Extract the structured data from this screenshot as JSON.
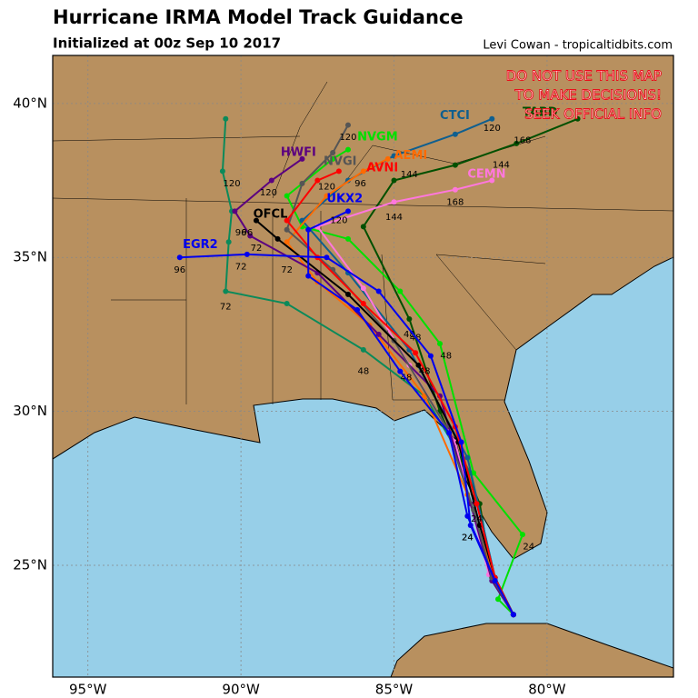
{
  "header": {
    "title": "Hurricane IRMA Model Track Guidance",
    "subtitle": "Initialized at 00z Sep 10 2017",
    "credit": "Levi Cowan - tropicaltidbits.com"
  },
  "warning": [
    "DO NOT USE THIS MAP",
    "TO MAKE DECISIONS!",
    "SEEK OFFICIAL INFO"
  ],
  "map": {
    "xlim": [
      -96.15,
      -75.87
    ],
    "ylim": [
      21.37,
      41.56
    ],
    "xticks": [
      {
        "value": -95,
        "label": "95°W"
      },
      {
        "value": -90,
        "label": "90°W"
      },
      {
        "value": -85,
        "label": "85°W"
      },
      {
        "value": -80,
        "label": "80°W"
      }
    ],
    "yticks": [
      {
        "value": 25,
        "label": "25°N"
      },
      {
        "value": 30,
        "label": "30°N"
      },
      {
        "value": 35,
        "label": "35°N"
      },
      {
        "value": 40,
        "label": "40°N"
      }
    ],
    "tracks": [
      {
        "color": "#0b8a5a",
        "lon": [
          -81.1,
          -81.7,
          -82.5,
          -84,
          -86,
          -88.5,
          -90.5,
          -90.4,
          -90.3,
          -90.6,
          -90.5
        ],
        "lat": [
          23.4,
          24.6,
          28,
          30.5,
          32,
          33.5,
          33.9,
          35.5,
          36.5,
          37.8,
          39.5
        ],
        "hours": [
          {
            "h": 48,
            "lon": -86,
            "lat": 31.3
          },
          {
            "h": 72,
            "lon": -90.5,
            "lat": 33.4
          },
          {
            "h": 120,
            "lon": -90.3,
            "lat": 37.4
          }
        ]
      },
      {
        "color": "#00e000",
        "name": "NVGM",
        "label_at": [
          -86.2,
          38.9
        ],
        "lon": [
          -81.1,
          -81.6,
          -80.8,
          -82.4,
          -83.5,
          -84.8,
          -86.5,
          -88,
          -88.5,
          -87,
          -86.5
        ],
        "lat": [
          23.4,
          23.9,
          26,
          28,
          32.2,
          33.9,
          35.6,
          36,
          37,
          38.2,
          38.5
        ],
        "hours": [
          {
            "h": 24,
            "lon": -80.6,
            "lat": 25.6
          },
          {
            "h": 48,
            "lon": -83.3,
            "lat": 31.8
          }
        ]
      },
      {
        "color": "#005000",
        "name": "TABD",
        "label_at": [
          -80.8,
          39.7
        ],
        "lon": [
          -81.1,
          -81.8,
          -82.2,
          -83.5,
          -84.5,
          -86,
          -85,
          -83,
          -81,
          -79
        ],
        "lat": [
          23.4,
          24.6,
          27,
          30,
          33,
          36,
          37.5,
          38,
          38.7,
          39.5
        ],
        "hours": [
          {
            "h": 48,
            "lon": -84.3,
            "lat": 32.4
          },
          {
            "h": 144,
            "lon": -81.5,
            "lat": 38
          },
          {
            "h": 168,
            "lon": -80.8,
            "lat": 38.8
          }
        ]
      },
      {
        "color": "#0f5f8f",
        "name": "CTCI",
        "label_at": [
          -83.5,
          39.6
        ],
        "lon": [
          -81.1,
          -81.7,
          -82.6,
          -84.5,
          -86.5,
          -88,
          -86.5,
          -85,
          -83,
          -81.8
        ],
        "lat": [
          23.4,
          24.6,
          28.5,
          32,
          34.5,
          36.2,
          37.5,
          38.3,
          39,
          39.5
        ],
        "hours": [
          {
            "h": 120,
            "lon": -81.8,
            "lat": 39.2
          },
          {
            "h": 144,
            "lon": -84.5,
            "lat": 37.7
          }
        ]
      },
      {
        "color": "#ff77dd",
        "name": "CEMN",
        "label_at": [
          -82.6,
          37.7
        ],
        "lon": [
          -81.1,
          -81.9,
          -82.5,
          -83,
          -84.5,
          -86,
          -87.5,
          -85,
          -83,
          -81.8
        ],
        "lat": [
          23.4,
          24.7,
          27,
          29,
          31.5,
          34,
          36,
          36.8,
          37.2,
          37.5
        ],
        "hours": [
          {
            "h": 144,
            "lon": -85,
            "lat": 36.3
          },
          {
            "h": 168,
            "lon": -83,
            "lat": 36.8
          }
        ]
      },
      {
        "color": "#ff6a00",
        "name": "AEMI",
        "label_at": [
          -85,
          38.3
        ],
        "lon": [
          -81.1,
          -81.8,
          -82.6,
          -84,
          -85.8,
          -87.5,
          -88.5,
          -87.2,
          -86,
          -85.2
        ],
        "lat": [
          23.4,
          24.8,
          27.3,
          30.5,
          32.8,
          34.2,
          35.5,
          37,
          37.8,
          38.2
        ],
        "hours": [
          {
            "h": 72,
            "lon": -88.5,
            "lat": 34.6
          }
        ]
      },
      {
        "color": "#5b0080",
        "name": "HWFI",
        "label_at": [
          -88.7,
          38.4
        ],
        "lon": [
          -81.1,
          -81.8,
          -82.5,
          -83.5,
          -85.5,
          -87.5,
          -89.7,
          -90.2,
          -89,
          -88
        ],
        "lat": [
          23.4,
          24.5,
          27,
          30.5,
          32.5,
          34.5,
          35.7,
          36.5,
          37.5,
          38.2
        ],
        "hours": [
          {
            "h": 96,
            "lon": -90,
            "lat": 35.8
          },
          {
            "h": 120,
            "lon": -89.1,
            "lat": 37.1
          }
        ]
      },
      {
        "color": "#555555",
        "name": "NVGI",
        "label_at": [
          -87.3,
          38.1
        ],
        "lon": [
          -81.1,
          -81.8,
          -82.4,
          -83.3,
          -85,
          -87,
          -88.5,
          -88,
          -87,
          -86.5
        ],
        "lat": [
          23.4,
          24.6,
          26.8,
          29.5,
          32.3,
          34.6,
          35.9,
          37.4,
          38.4,
          39.3
        ],
        "hours": [
          {
            "h": 120,
            "lon": -86.5,
            "lat": 38.9
          }
        ]
      },
      {
        "color": "#000000",
        "name": "OFCL",
        "label_at": [
          -89.6,
          36.4
        ],
        "lon": [
          -81.1,
          -81.7,
          -82.2,
          -82.9,
          -84.2,
          -86.5,
          -88.8,
          -89.5
        ],
        "lat": [
          23.4,
          24.6,
          26.3,
          29,
          31.5,
          33.8,
          35.6,
          36.2
        ],
        "hours": [
          {
            "h": 24,
            "lon": -82.6,
            "lat": 25.9
          },
          {
            "h": 48,
            "lon": -84.6,
            "lat": 31.1
          },
          {
            "h": 72,
            "lon": -89.5,
            "lat": 35.3
          },
          {
            "h": 96,
            "lon": -89.8,
            "lat": 35.8
          }
        ]
      },
      {
        "color": "#ff0000",
        "name": "AVNI",
        "label_at": [
          -85.9,
          37.9
        ],
        "lon": [
          -81.1,
          -81.7,
          -82.3,
          -83,
          -84.3,
          -86,
          -87.5,
          -88.5,
          -87.5,
          -86.8
        ],
        "lat": [
          23.4,
          24.6,
          27,
          29.5,
          31.9,
          33.5,
          35,
          36.2,
          37.5,
          37.8
        ],
        "hours": [
          {
            "h": 24,
            "lon": -82.3,
            "lat": 26.5
          },
          {
            "h": 48,
            "lon": -84.5,
            "lat": 32.5
          },
          {
            "h": 96,
            "lon": -86.1,
            "lat": 37.4
          },
          {
            "h": 120,
            "lon": -87.2,
            "lat": 37.3
          }
        ]
      },
      {
        "color": "#0000ee",
        "name": "UKX2",
        "label_at": [
          -87.2,
          36.9
        ],
        "lon": [
          -81.1,
          -81.7,
          -82.6,
          -83.2,
          -84.8,
          -86.2,
          -87.8,
          -87.8,
          -86.5
        ],
        "lat": [
          23.4,
          24.5,
          26.6,
          29.3,
          31.3,
          33.3,
          34.4,
          35.9,
          36.5
        ],
        "hours": [
          {
            "h": 120,
            "lon": -86.8,
            "lat": 36.2
          }
        ]
      },
      {
        "color": "#0000ee",
        "name": "EGR2",
        "label_at": [
          -91.9,
          35.4
        ],
        "lon": [
          -81.1,
          -81.7,
          -82.5,
          -82.8,
          -83.8,
          -85.5,
          -87.2,
          -89.8,
          -92
        ],
        "lat": [
          23.4,
          24.5,
          26.3,
          29,
          31.8,
          33.9,
          35,
          35.1,
          35
        ],
        "hours": [
          {
            "h": 24,
            "lon": -82.6,
            "lat": 25.9
          },
          {
            "h": 48,
            "lon": -84,
            "lat": 31.3
          },
          {
            "h": 72,
            "lon": -90,
            "lat": 34.7
          },
          {
            "h": 96,
            "lon": -92,
            "lat": 34.6
          }
        ]
      }
    ]
  }
}
